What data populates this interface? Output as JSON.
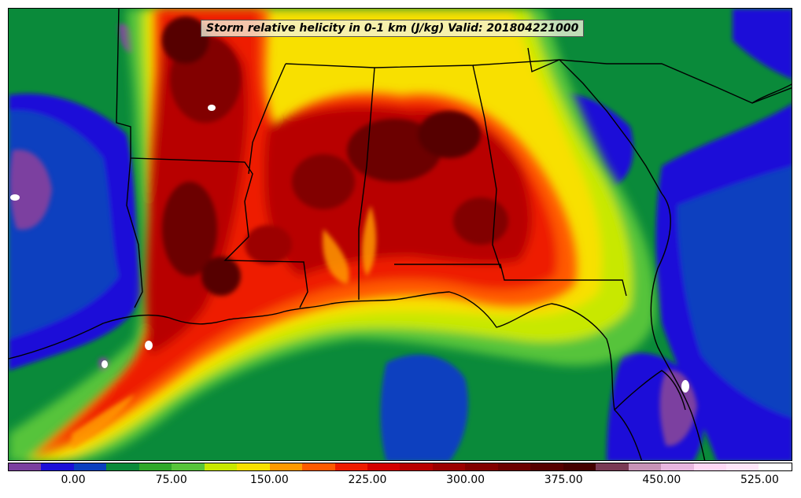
{
  "title": "Storm relative helicity in 0-1 km (J/kg) Valid: 201804221000",
  "colorbar": {
    "colors": [
      "#7b3fa0",
      "#1c0fd8",
      "#0a3fbf",
      "#0a8a3a",
      "#2fa82a",
      "#57c43a",
      "#c8e800",
      "#f8e000",
      "#ff9a00",
      "#ff5a00",
      "#ee1c00",
      "#d40000",
      "#b80000",
      "#9c0000",
      "#820000",
      "#6c0000",
      "#560000",
      "#440000",
      "#7a3a55",
      "#c893b8",
      "#e8b6e0",
      "#ffd8f6",
      "#ffe6fb",
      "#ffffff"
    ],
    "ticks": [
      {
        "label": "0.00",
        "index": 2
      },
      {
        "label": "75.00",
        "index": 5
      },
      {
        "label": "150.00",
        "index": 8
      },
      {
        "label": "225.00",
        "index": 11
      },
      {
        "label": "300.00",
        "index": 14
      },
      {
        "label": "375.00",
        "index": 17
      },
      {
        "label": "450.00",
        "index": 20
      },
      {
        "label": "525.00",
        "index": 23
      }
    ]
  }
}
